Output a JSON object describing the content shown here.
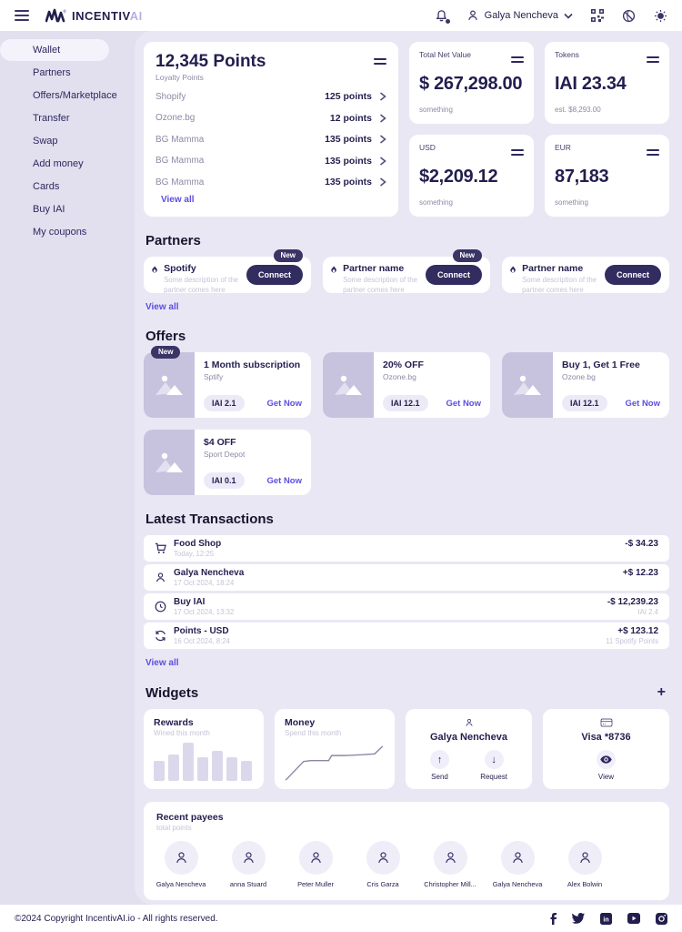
{
  "header": {
    "brand_main": "INCENTIV",
    "brand_accent": "AI",
    "user_name": "Galya Nencheva"
  },
  "sidebar": {
    "items": [
      {
        "label": "Wallet"
      },
      {
        "label": "Partners"
      },
      {
        "label": "Offers/Marketplace"
      },
      {
        "label": "Transfer"
      },
      {
        "label": "Swap"
      },
      {
        "label": "Add money"
      },
      {
        "label": "Cards"
      },
      {
        "label": "Buy IAI"
      },
      {
        "label": "My coupons"
      }
    ]
  },
  "points_card": {
    "title": "12,345 Points",
    "subtitle": "Loyalty Points",
    "rows": [
      {
        "name": "Shopify",
        "value": "125 points"
      },
      {
        "name": "Ozone.bg",
        "value": "12 points"
      },
      {
        "name": "BG Mamma",
        "value": "135 points"
      },
      {
        "name": "BG Mamma",
        "value": "135 points"
      },
      {
        "name": "BG Mamma",
        "value": "135 points"
      }
    ],
    "view_all": "View all"
  },
  "stat_cards": [
    {
      "label": "Total Net Value",
      "value": "$ 267,298.00",
      "sub": "something"
    },
    {
      "label": "Tokens",
      "value": "IAI 23.34",
      "sub": "est. $8,293.00"
    },
    {
      "label": "USD",
      "value": "$2,209.12",
      "sub": "something"
    },
    {
      "label": "EUR",
      "value": "87,183",
      "sub": "something"
    }
  ],
  "partners": {
    "heading": "Partners",
    "view_all": "View all",
    "badge_new": "New",
    "connect_label": "Connect",
    "cards": [
      {
        "name": "Spotify",
        "description": "Some description of the partner comes here"
      },
      {
        "name": "Partner name",
        "description": "Some description of the partner comes here"
      },
      {
        "name": "Partner name",
        "description": "Some description of the partner comes here"
      }
    ]
  },
  "offers": {
    "heading": "Offers",
    "badge_new": "New",
    "get_now": "Get Now",
    "cards": [
      {
        "title": "1 Month subscription",
        "merchant": "Sptify",
        "price": "IAI 2.1"
      },
      {
        "title": "20% OFF",
        "merchant": "Ozone.bg",
        "price": "IAI 12.1"
      },
      {
        "title": "Buy 1, Get 1 Free",
        "merchant": "Ozone.bg",
        "price": "IAI 12.1"
      },
      {
        "title": "$4 OFF",
        "merchant": "Sport Depot",
        "price": "IAI 0.1"
      }
    ]
  },
  "transactions": {
    "heading": "Latest Transactions",
    "view_all": "View all",
    "rows": [
      {
        "title": "Food Shop",
        "date": "Today, 12:25",
        "amount": "-$ 34.23",
        "sub": ""
      },
      {
        "title": "Galya Nencheva",
        "date": "17 Oct 2024, 18:24",
        "amount": "+$ 12.23",
        "sub": ""
      },
      {
        "title": "Buy IAI",
        "date": "17 Oct 2024, 13:32",
        "amount": "-$ 12,239.23",
        "sub": "IAI 2.4"
      },
      {
        "title": "Points - USD",
        "date": "16 Oct 2024, 8:24",
        "amount": "+$ 123.12",
        "sub": "11 Spotify Points"
      }
    ]
  },
  "widgets": {
    "heading": "Widgets",
    "add_label": "+",
    "rewards": {
      "title": "Rewards",
      "subtitle": "Wined this month",
      "chart_type": "bar",
      "bars": [
        52,
        69,
        100,
        63,
        78,
        63,
        52
      ]
    },
    "money": {
      "title": "Money",
      "subtitle": "Spend this month",
      "chart_type": "line",
      "line_points": [
        [
          1,
          42
        ],
        [
          19,
          20
        ],
        [
          26,
          19
        ],
        [
          44,
          19
        ],
        [
          47,
          13
        ],
        [
          60,
          13
        ],
        [
          78,
          12
        ],
        [
          90,
          11
        ],
        [
          98,
          2
        ]
      ]
    },
    "contact": {
      "name": "Galya Nencheva",
      "send_label": "Send",
      "request_label": "Request"
    },
    "card": {
      "label": "Visa *8736",
      "view_label": "View"
    }
  },
  "recent_payees": {
    "title": "Recent payees",
    "subtitle": "total points",
    "names": [
      "Galya Nencheva",
      "anna Stuard",
      "Peter Muller",
      "Cris Garza",
      "Christopher Mill...",
      "Galya Nencheva",
      "Alex Bolwin"
    ]
  },
  "footer": {
    "copyright": "©2024 Copyright IncentivAI.io - All rights reserved."
  },
  "colors": {
    "accent": "#5b4ee0",
    "navy": "#2c2860",
    "background": "#e2dfee",
    "panel": "#eae7f5"
  }
}
